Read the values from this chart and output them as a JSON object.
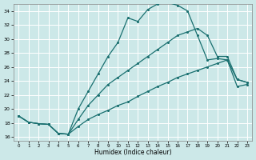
{
  "xlabel": "Humidex (Indice chaleur)",
  "bg_color": "#cce8e8",
  "grid_color": "#ffffff",
  "line_color": "#1a7070",
  "xlim": [
    -0.5,
    23.5
  ],
  "ylim": [
    15.5,
    35.0
  ],
  "xticks": [
    0,
    1,
    2,
    3,
    4,
    5,
    6,
    7,
    8,
    9,
    10,
    11,
    12,
    13,
    14,
    15,
    16,
    17,
    18,
    19,
    20,
    21,
    22,
    23
  ],
  "ytick_vals": [
    16,
    18,
    20,
    22,
    24,
    26,
    28,
    30,
    32,
    34
  ],
  "line1_x": [
    0,
    1,
    2,
    3,
    4,
    5,
    6,
    7,
    8,
    9,
    10,
    11,
    12,
    13,
    14,
    15,
    16,
    17,
    18,
    19,
    20,
    21,
    22,
    23
  ],
  "line1_y": [
    19.0,
    18.1,
    17.9,
    17.8,
    16.5,
    16.4,
    17.5,
    18.5,
    19.2,
    19.8,
    20.5,
    21.0,
    21.8,
    22.5,
    23.2,
    23.8,
    24.5,
    25.0,
    25.5,
    26.0,
    26.5,
    27.0,
    23.2,
    23.5
  ],
  "line2_x": [
    0,
    1,
    2,
    3,
    4,
    5,
    6,
    7,
    8,
    9,
    10,
    11,
    12,
    13,
    14,
    15,
    16,
    17,
    18,
    19,
    20,
    21,
    22,
    23
  ],
  "line2_y": [
    19.0,
    18.1,
    17.9,
    17.8,
    16.5,
    16.4,
    18.5,
    20.5,
    22.0,
    23.5,
    24.5,
    25.5,
    26.5,
    27.5,
    28.5,
    29.5,
    30.5,
    31.0,
    31.5,
    30.5,
    27.5,
    27.5,
    24.2,
    23.8
  ],
  "line3_x": [
    0,
    1,
    2,
    3,
    4,
    5,
    6,
    7,
    8,
    9,
    10,
    11,
    12,
    13,
    14,
    15,
    16,
    17,
    18,
    19,
    20,
    21,
    22,
    23
  ],
  "line3_y": [
    19.0,
    18.1,
    17.9,
    17.8,
    16.5,
    16.4,
    20.0,
    22.5,
    25.0,
    27.5,
    29.5,
    33.0,
    32.5,
    34.2,
    35.0,
    35.2,
    34.8,
    34.0,
    30.5,
    27.0,
    27.2,
    27.0,
    24.2,
    23.8
  ]
}
